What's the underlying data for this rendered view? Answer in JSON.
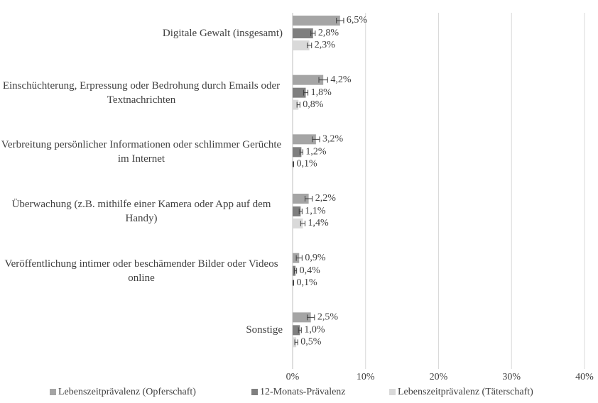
{
  "chart_data": {
    "type": "bar",
    "orientation": "horizontal",
    "categories": [
      "Digitale Gewalt (insgesamt)",
      "Einschüchterung, Erpressung oder Bedrohung durch Emails oder Textnachrichten",
      "Verbreitung persönlicher Informationen oder schlimmer Gerüchte im Internet",
      "Überwachung (z.B. mithilfe einer Kamera oder App auf dem Handy)",
      "Veröffentlichung intimer oder beschämender Bilder oder Videos online",
      "Sonstige"
    ],
    "series": [
      {
        "name": "Lebenszeitprävalenz (Opferschaft)",
        "color": "#a5a5a5",
        "values": [
          6.5,
          4.2,
          3.2,
          2.2,
          0.9,
          2.5
        ],
        "errors": [
          0.5,
          0.6,
          0.5,
          0.5,
          0.4,
          0.5
        ],
        "value_labels": [
          "6,5%",
          "4,2%",
          "3,2%",
          "2,2%",
          "0,9%",
          "2,5%"
        ]
      },
      {
        "name": "12-Monats-Prävalenz",
        "color": "#7f7f7f",
        "values": [
          2.8,
          1.8,
          1.2,
          1.1,
          0.4,
          1.0
        ],
        "errors": [
          0.3,
          0.3,
          0.2,
          0.2,
          0.15,
          0.2
        ],
        "value_labels": [
          "2,8%",
          "1,8%",
          "1,2%",
          "1,1%",
          "0,4%",
          "1,0%"
        ]
      },
      {
        "name": "Lebenszeitprävalenz (Täterschaft)",
        "color": "#d9d9d9",
        "values": [
          2.3,
          0.8,
          0.1,
          1.4,
          0.1,
          0.5
        ],
        "errors": [
          0.3,
          0.2,
          0.05,
          0.3,
          0.05,
          0.2
        ],
        "value_labels": [
          "2,3%",
          "0,8%",
          "0,1%",
          "1,4%",
          "0,1%",
          "0,5%"
        ]
      }
    ],
    "xlim": [
      0,
      40
    ],
    "xticks": [
      {
        "value": 0,
        "label": "0%"
      },
      {
        "value": 10,
        "label": "10%"
      },
      {
        "value": 20,
        "label": "20%"
      },
      {
        "value": 30,
        "label": "30%"
      },
      {
        "value": 40,
        "label": "40%"
      }
    ],
    "grid": true,
    "legend": "bottom"
  }
}
